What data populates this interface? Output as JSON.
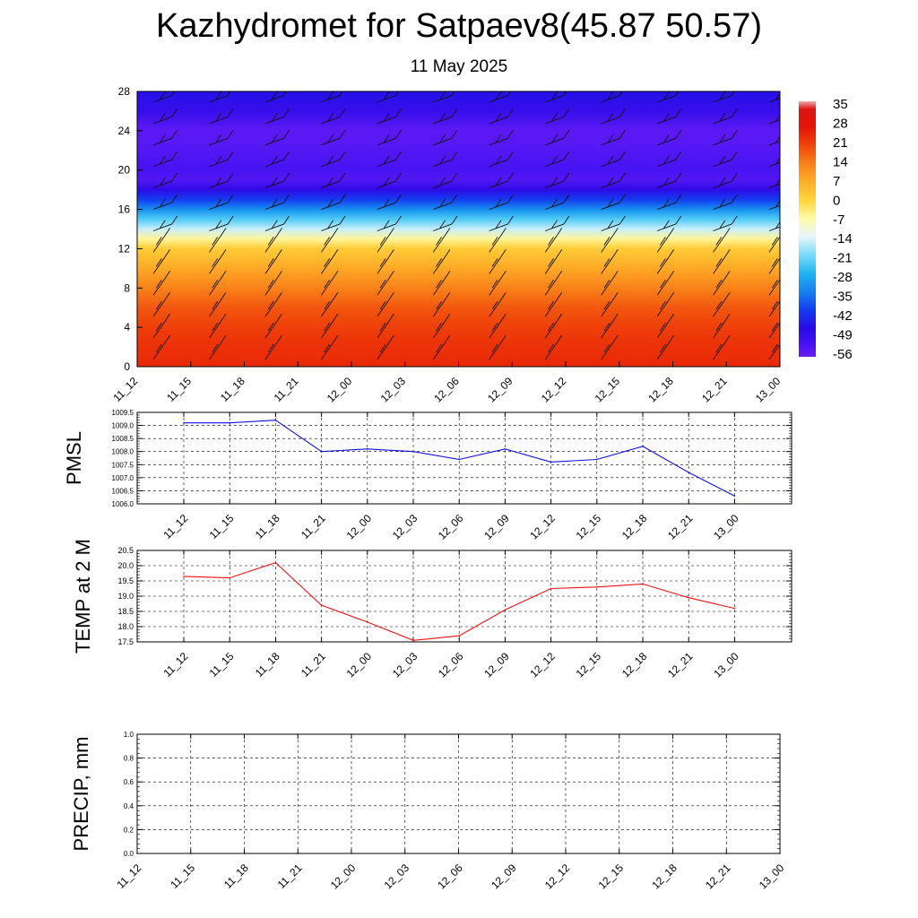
{
  "header": {
    "title": "Kazhydromet for Satpaev8(45.87 50.57)",
    "date": "11 May 2025"
  },
  "colors": {
    "pmsl_line": "#1010dd",
    "temp_line": "#ee1111",
    "precip_line": "#006400"
  },
  "chart_data": [
    {
      "type": "heatmap",
      "title": "",
      "description_axis": "height levels with wind barbs",
      "x_tick_labels": [
        "11_12",
        "11_15",
        "11_18",
        "11_21",
        "12_00",
        "12_03",
        "12_06",
        "12_09",
        "12_12",
        "12_15",
        "12_18",
        "12_21",
        "13_00"
      ],
      "y_ticks": [
        0,
        4,
        8,
        12,
        16,
        20,
        24,
        28
      ],
      "ylim": [
        0,
        28
      ],
      "colorbar_labels": [
        35,
        28,
        21,
        14,
        7,
        0,
        -7,
        -14,
        -21,
        -28,
        -35,
        -42,
        -49,
        -56
      ],
      "colorbar_range": [
        -60,
        38
      ],
      "temperature_profile": [
        {
          "y": 0,
          "value": 25
        },
        {
          "y": 2,
          "value": 24
        },
        {
          "y": 4,
          "value": 22
        },
        {
          "y": 6,
          "value": 19
        },
        {
          "y": 8,
          "value": 14
        },
        {
          "y": 10,
          "value": 8
        },
        {
          "y": 12,
          "value": 2
        },
        {
          "y": 13,
          "value": -6
        },
        {
          "y": 14,
          "value": -16
        },
        {
          "y": 15,
          "value": -24
        },
        {
          "y": 16,
          "value": -33
        },
        {
          "y": 17,
          "value": -42
        },
        {
          "y": 18,
          "value": -50
        },
        {
          "y": 19,
          "value": -57
        },
        {
          "y": 20,
          "value": -55
        },
        {
          "y": 22,
          "value": -57
        },
        {
          "y": 24,
          "value": -58
        },
        {
          "y": 26,
          "value": -52
        },
        {
          "y": 28,
          "value": -48
        }
      ],
      "grid": false
    },
    {
      "type": "line",
      "ylabel": "PMSL",
      "x_tick_labels": [
        "11_12",
        "11_15",
        "11_18",
        "11_21",
        "12_00",
        "12_03",
        "12_06",
        "12_09",
        "12_12",
        "12_15",
        "12_18",
        "12_21",
        "13_00"
      ],
      "y_tick_labels": [
        "1009.5",
        "1009.0",
        "1008.5",
        "1008.0",
        "1007.5",
        "1007.0",
        "1006.5",
        "1006.0"
      ],
      "ylim": [
        1006.0,
        1009.5
      ],
      "values": [
        1009.1,
        1009.1,
        1009.2,
        1008.0,
        1008.1,
        1008.0,
        1007.7,
        1008.1,
        1007.6,
        1007.7,
        1008.2,
        1007.2,
        1006.3
      ],
      "grid": true
    },
    {
      "type": "line",
      "ylabel": "TEMP at 2 M",
      "x_tick_labels": [
        "11_12",
        "11_15",
        "11_18",
        "11_21",
        "12_00",
        "12_03",
        "12_06",
        "12_09",
        "12_12",
        "12_15",
        "12_18",
        "12_21",
        "13_00"
      ],
      "y_tick_labels": [
        "20.5",
        "20.0",
        "19.5",
        "19.0",
        "18.5",
        "18.0",
        "17.5"
      ],
      "ylim": [
        17.5,
        20.5
      ],
      "values": [
        19.65,
        19.6,
        20.1,
        18.7,
        18.15,
        17.55,
        17.7,
        18.55,
        19.25,
        19.3,
        19.4,
        18.95,
        18.6
      ],
      "grid": true
    },
    {
      "type": "line",
      "ylabel": "PRECIP, mm",
      "x_tick_labels": [
        "11_12",
        "11_15",
        "11_18",
        "11_21",
        "12_00",
        "12_03",
        "12_06",
        "12_09",
        "12_12",
        "12_15",
        "12_18",
        "12_21",
        "13_00"
      ],
      "y_tick_labels": [
        "1.0",
        "0.8",
        "0.6",
        "0.4",
        "0.2",
        "0.0"
      ],
      "ylim": [
        0.0,
        1.0
      ],
      "values": [
        0,
        0,
        0,
        0,
        0,
        0,
        0,
        0,
        0,
        0,
        0,
        0,
        0
      ],
      "grid": true
    }
  ]
}
